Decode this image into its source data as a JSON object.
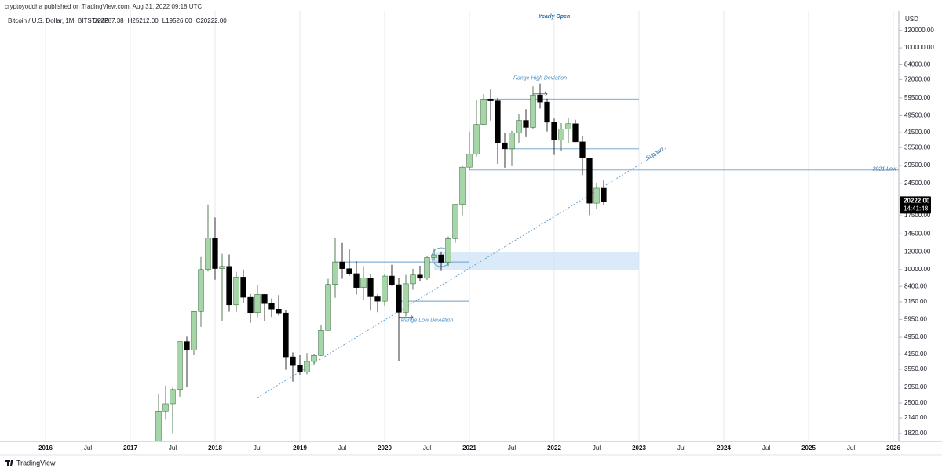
{
  "chart_data": {
    "type": "candlestick",
    "byline": "cryptoyoddha published on TradingView.com, Aug 31, 2022 09:18 UTC",
    "title": "Bitcoin / U.S. Dollar, 1M, BITSTAMP",
    "header_ohlc": [
      "O23287.38",
      "H25212.00",
      "L19526.00",
      "C20222.00"
    ],
    "currency": "USD",
    "brand": "TradingView",
    "log_scale": true,
    "grid": true,
    "up_color": "#a5d6a7",
    "up_border": "#2e5e30",
    "down_color": "#000000",
    "ylim": [
      1650,
      164500
    ],
    "xlim": [
      "2015-07",
      "2026-02"
    ],
    "yticks": [
      {
        "value": 120000,
        "label": "120000.00"
      },
      {
        "value": 100000,
        "label": "100000.00"
      },
      {
        "value": 84000,
        "label": "84000.00"
      },
      {
        "value": 72000,
        "label": "72000.00"
      },
      {
        "value": 59500,
        "label": "59500.00"
      },
      {
        "value": 49500,
        "label": "49500.00"
      },
      {
        "value": 41500,
        "label": "41500.00"
      },
      {
        "value": 35500,
        "label": "35500.00"
      },
      {
        "value": 29500,
        "label": "29500.00"
      },
      {
        "value": 24500,
        "label": "24500.00"
      },
      {
        "value": 17500,
        "label": "17500.00"
      },
      {
        "value": 14500,
        "label": "14500.00"
      },
      {
        "value": 12000,
        "label": "12000.00"
      },
      {
        "value": 10000,
        "label": "10000.00"
      },
      {
        "value": 8400,
        "label": "8400.00"
      },
      {
        "value": 7150,
        "label": "7150.00"
      },
      {
        "value": 5950,
        "label": "5950.00"
      },
      {
        "value": 4950,
        "label": "4950.00"
      },
      {
        "value": 4150,
        "label": "4150.00"
      },
      {
        "value": 3550,
        "label": "3550.00"
      },
      {
        "value": 2950,
        "label": "2950.00"
      },
      {
        "value": 2500,
        "label": "2500.00"
      },
      {
        "value": 2140,
        "label": "2140.00"
      },
      {
        "value": 1820,
        "label": "1820.00"
      }
    ],
    "xticks": [
      {
        "value": "2016-01",
        "label": "2016"
      },
      {
        "value": "2017-01",
        "label": "2017"
      },
      {
        "value": "2018-01",
        "label": "2018"
      },
      {
        "value": "2019-01",
        "label": "2019"
      },
      {
        "value": "2020-01",
        "label": "2020"
      },
      {
        "value": "2021-01",
        "label": "2021"
      },
      {
        "value": "2022-01",
        "label": "2022"
      },
      {
        "value": "2023-01",
        "label": "2023"
      },
      {
        "value": "2024-01",
        "label": "2024"
      },
      {
        "value": "2025-01",
        "label": "2025"
      },
      {
        "value": "2026-01",
        "label": "2026"
      }
    ],
    "xticks_minor": [
      {
        "value": "2016-07",
        "label": "Jul"
      },
      {
        "value": "2017-07",
        "label": "Jul"
      },
      {
        "value": "2018-07",
        "label": "Jul"
      },
      {
        "value": "2019-07",
        "label": "Jul"
      },
      {
        "value": "2020-07",
        "label": "Jul"
      },
      {
        "value": "2021-07",
        "label": "Jul"
      },
      {
        "value": "2022-07",
        "label": "Jul"
      },
      {
        "value": "2023-07",
        "label": "Jul"
      },
      {
        "value": "2024-07",
        "label": "Jul"
      },
      {
        "value": "2025-07",
        "label": "Jul"
      }
    ],
    "price_line": {
      "value": 20222,
      "label": "20222.00",
      "countdown": "14:41:48"
    },
    "series": [
      {
        "name": "Bitcoin / U.S. Dollar",
        "x": [
          "2017-05",
          "2017-06",
          "2017-07",
          "2017-08",
          "2017-09",
          "2017-10",
          "2017-11",
          "2017-12",
          "2018-01",
          "2018-02",
          "2018-03",
          "2018-04",
          "2018-05",
          "2018-06",
          "2018-07",
          "2018-08",
          "2018-09",
          "2018-10",
          "2018-11",
          "2018-12",
          "2019-01",
          "2019-02",
          "2019-03",
          "2019-04",
          "2019-05",
          "2019-06",
          "2019-07",
          "2019-08",
          "2019-09",
          "2019-10",
          "2019-11",
          "2019-12",
          "2020-01",
          "2020-02",
          "2020-03",
          "2020-04",
          "2020-05",
          "2020-06",
          "2020-07",
          "2020-08",
          "2020-09",
          "2020-10",
          "2020-11",
          "2020-12",
          "2021-01",
          "2021-02",
          "2021-03",
          "2021-04",
          "2021-05",
          "2021-06",
          "2021-07",
          "2021-08",
          "2021-09",
          "2021-10",
          "2021-11",
          "2021-12",
          "2022-01",
          "2022-02",
          "2022-03",
          "2022-04",
          "2022-05",
          "2022-06",
          "2022-07",
          "2022-08"
        ],
        "open": [
          1348,
          2300,
          2480,
          2875,
          4735,
          4340,
          6470,
          10000,
          13880,
          10100,
          10330,
          6930,
          9250,
          7500,
          6390,
          7730,
          7020,
          6630,
          6370,
          4040,
          3690,
          3450,
          3850,
          4100,
          5320,
          8570,
          10820,
          10090,
          9590,
          8300,
          9150,
          7540,
          7200,
          9350,
          8550,
          6410,
          8630,
          9450,
          9140,
          11330,
          11650,
          10780,
          13800,
          19700,
          28980,
          33110,
          45200,
          58800,
          57700,
          37300,
          35040,
          41460,
          47100,
          43800,
          61300,
          57000,
          46200,
          38500,
          43160,
          45500,
          37700,
          31800,
          19930,
          23287.38
        ],
        "high": [
          2760,
          3000,
          2930,
          4740,
          4980,
          6470,
          11400,
          19666,
          17180,
          11790,
          11700,
          9770,
          9990,
          7770,
          8500,
          7760,
          7410,
          7680,
          6590,
          4230,
          4110,
          4200,
          4150,
          5640,
          9080,
          13880,
          13200,
          12330,
          10920,
          10370,
          9520,
          7750,
          9580,
          10500,
          9180,
          9460,
          10080,
          10400,
          11450,
          12470,
          12060,
          14100,
          19480,
          29300,
          41950,
          58350,
          61800,
          64900,
          59500,
          41300,
          42300,
          50500,
          52900,
          67000,
          69000,
          59100,
          48000,
          45800,
          48100,
          47400,
          40000,
          32000,
          24650,
          25212
        ],
        "low": [
          1345,
          2100,
          1830,
          2670,
          2950,
          4110,
          5520,
          9800,
          9000,
          5870,
          6450,
          6430,
          7060,
          5750,
          6100,
          5880,
          6120,
          6200,
          3530,
          3120,
          3350,
          3370,
          3700,
          4080,
          5350,
          7460,
          9080,
          9360,
          7720,
          7300,
          6520,
          6420,
          6860,
          8450,
          3850,
          6150,
          8100,
          8900,
          8990,
          10950,
          9850,
          10380,
          13200,
          17570,
          28130,
          32300,
          45000,
          47000,
          30000,
          28800,
          29300,
          37300,
          39600,
          43300,
          53300,
          42000,
          32900,
          34300,
          37200,
          37600,
          26700,
          17600,
          18780,
          19526
        ],
        "close": [
          2300,
          2480,
          2875,
          4735,
          4340,
          6470,
          10000,
          13880,
          10100,
          10330,
          6930,
          9250,
          7500,
          6390,
          7730,
          7020,
          6630,
          6370,
          4040,
          3690,
          3450,
          3850,
          4100,
          5320,
          8570,
          10820,
          10090,
          9590,
          8300,
          9150,
          7540,
          7200,
          9350,
          8550,
          6410,
          8630,
          9450,
          9140,
          11330,
          11650,
          10780,
          13800,
          19700,
          28980,
          33110,
          45200,
          58800,
          57700,
          37300,
          35040,
          41460,
          47100,
          43800,
          61300,
          57000,
          46200,
          38500,
          43160,
          45500,
          37700,
          31800,
          19930,
          23300,
          20222
        ]
      }
    ],
    "annotations": {
      "hlines": [
        {
          "price": 58800,
          "from": "2021-03",
          "to": "2023-01"
        },
        {
          "price": 35040,
          "from": "2021-06",
          "to": "2023-01"
        },
        {
          "price": 28130,
          "from": "2021-01",
          "to": "2026-02",
          "text": "2021 Low"
        },
        {
          "price": 10820,
          "from": "2019-06",
          "to": "2021-01"
        },
        {
          "price": 7200,
          "from": "2020-03",
          "to": "2021-01"
        }
      ],
      "zone": {
        "low": 9950,
        "high": 12000,
        "from": "2020-08",
        "to": "2023-01"
      },
      "support": {
        "from": "2018-07",
        "from_price": 2645,
        "to": "2023-05",
        "to_price": 35500,
        "text": "Support"
      },
      "range_high": {
        "text": "Range High Deviation",
        "at": "2021-11",
        "price": 73000,
        "arrow_from": "2021-10",
        "arrow_to": "2021-12",
        "arrow_price": 62000
      },
      "range_low": {
        "text": "Range Low Deviation",
        "at": "2020-07",
        "price": 5890,
        "arrow_from": "2020-03",
        "arrow_to": "2020-05",
        "arrow_price": 6100
      },
      "circle": {
        "at": "2020-09",
        "price": 11370
      },
      "yearly_open": {
        "text": "Yearly Open",
        "at": "2022-01"
      }
    }
  }
}
